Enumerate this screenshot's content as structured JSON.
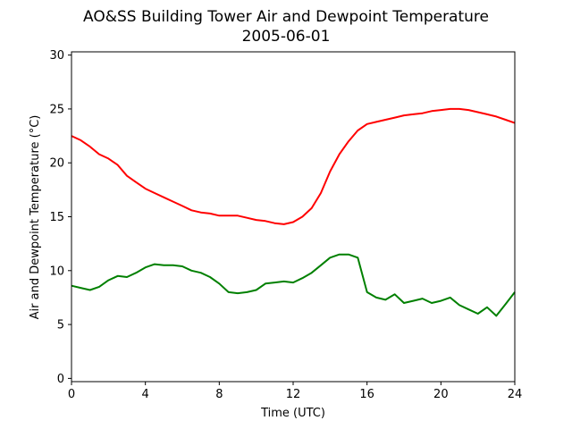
{
  "chart_data": {
    "type": "line",
    "title": "AO&SS Building Tower Air and Dewpoint Temperature",
    "subtitle": "2005-06-01",
    "xlabel": "Time (UTC)",
    "ylabel": "Air and Dewpoint Temperature (°C)",
    "xlim": [
      0,
      24
    ],
    "ylim": [
      -0.3,
      30.3
    ],
    "xticks": [
      "0",
      "4",
      "8",
      "12",
      "16",
      "20",
      "24"
    ],
    "yticks": [
      "0",
      "5",
      "10",
      "15",
      "20",
      "25",
      "30"
    ],
    "grid": false,
    "series": [
      {
        "color": "#ff0000",
        "x": [
          0,
          0.5,
          1,
          1.5,
          2,
          2.5,
          3,
          3.5,
          4,
          4.5,
          5,
          5.5,
          6,
          6.5,
          7,
          7.5,
          8,
          8.5,
          9,
          9.5,
          10,
          10.5,
          11,
          11.5,
          12,
          12.5,
          13,
          13.5,
          14,
          14.5,
          15,
          15.5,
          16,
          16.5,
          17,
          17.5,
          18,
          18.5,
          19,
          19.5,
          20,
          20.5,
          21,
          21.5,
          22,
          22.5,
          23,
          23.5,
          24
        ],
        "values": [
          22.5,
          22.1,
          21.5,
          20.8,
          20.4,
          19.8,
          18.8,
          18.2,
          17.6,
          17.2,
          16.8,
          16.4,
          16.0,
          15.6,
          15.4,
          15.3,
          15.1,
          15.1,
          15.1,
          14.9,
          14.7,
          14.6,
          14.4,
          14.3,
          14.5,
          15.0,
          15.8,
          17.2,
          19.2,
          20.8,
          22.0,
          23.0,
          23.6,
          23.8,
          24.0,
          24.2,
          24.4,
          24.5,
          24.6,
          24.8,
          24.9,
          25.0,
          25.0,
          24.9,
          24.7,
          24.5,
          24.3,
          24.0,
          23.7
        ]
      },
      {
        "color": "#008000",
        "x": [
          0,
          0.5,
          1,
          1.5,
          2,
          2.5,
          3,
          3.5,
          4,
          4.5,
          5,
          5.5,
          6,
          6.5,
          7,
          7.5,
          8,
          8.5,
          9,
          9.5,
          10,
          10.5,
          11,
          11.5,
          12,
          12.5,
          13,
          13.5,
          14,
          14.5,
          15,
          15.5,
          16,
          16.5,
          17,
          17.5,
          18,
          18.5,
          19,
          19.5,
          20,
          20.5,
          21,
          21.5,
          22,
          22.5,
          23,
          23.5,
          24
        ],
        "values": [
          8.6,
          8.4,
          8.2,
          8.5,
          9.1,
          9.5,
          9.4,
          9.8,
          10.3,
          10.6,
          10.5,
          10.5,
          10.4,
          10.0,
          9.8,
          9.4,
          8.8,
          8.0,
          7.9,
          8.0,
          8.2,
          8.8,
          8.9,
          9.0,
          8.9,
          9.3,
          9.8,
          10.5,
          11.2,
          11.5,
          11.5,
          11.2,
          8.0,
          7.5,
          7.3,
          7.8,
          7.0,
          7.2,
          7.4,
          7.0,
          7.2,
          7.5,
          6.8,
          6.4,
          6.0,
          6.6,
          5.8,
          6.9,
          8.0
        ]
      }
    ]
  }
}
